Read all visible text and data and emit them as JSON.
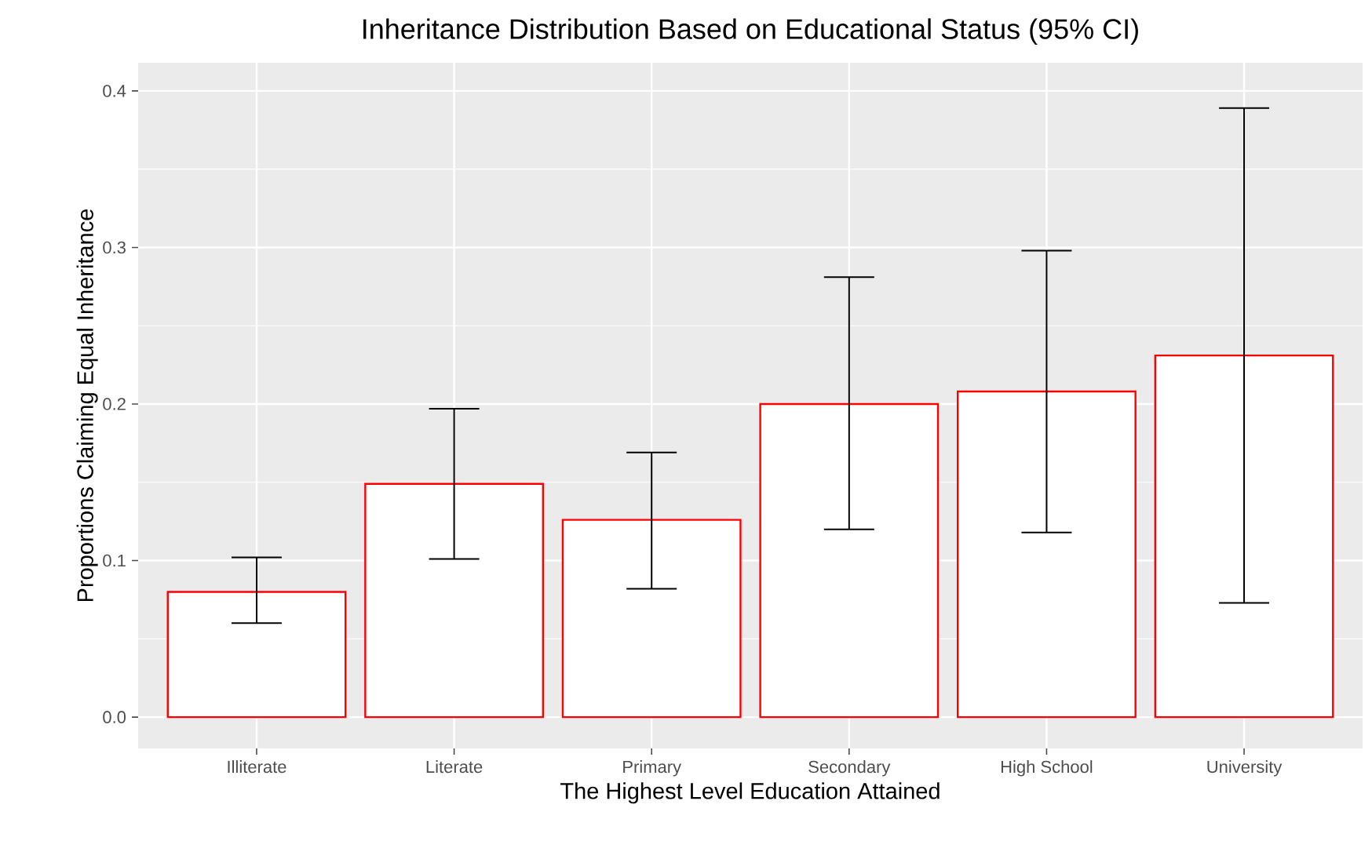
{
  "chart_data": {
    "type": "bar",
    "title": "Inheritance Distribution Based on Educational Status (95% CI)",
    "xlabel": "The Highest Level Education Attained",
    "ylabel": "Proportions Claiming Equal Inheritance",
    "categories": [
      "Illiterate",
      "Literate",
      "Primary",
      "Secondary",
      "High School",
      "University"
    ],
    "values": [
      0.08,
      0.149,
      0.126,
      0.2,
      0.208,
      0.231
    ],
    "errors": [
      [
        0.06,
        0.102
      ],
      [
        0.101,
        0.197
      ],
      [
        0.082,
        0.169
      ],
      [
        0.12,
        0.281
      ],
      [
        0.118,
        0.298
      ],
      [
        0.073,
        0.389
      ]
    ],
    "color": "#ff0000",
    "ylim": [
      -0.02,
      0.418
    ],
    "yticks": [
      {
        "value": 0,
        "label": "0.0"
      },
      {
        "value": 0.1,
        "label": "0.1"
      },
      {
        "value": 0.2,
        "label": "0.2"
      },
      {
        "value": 0.3,
        "label": "0.3"
      },
      {
        "value": 0.4,
        "label": "0.4"
      }
    ],
    "grid": true
  }
}
